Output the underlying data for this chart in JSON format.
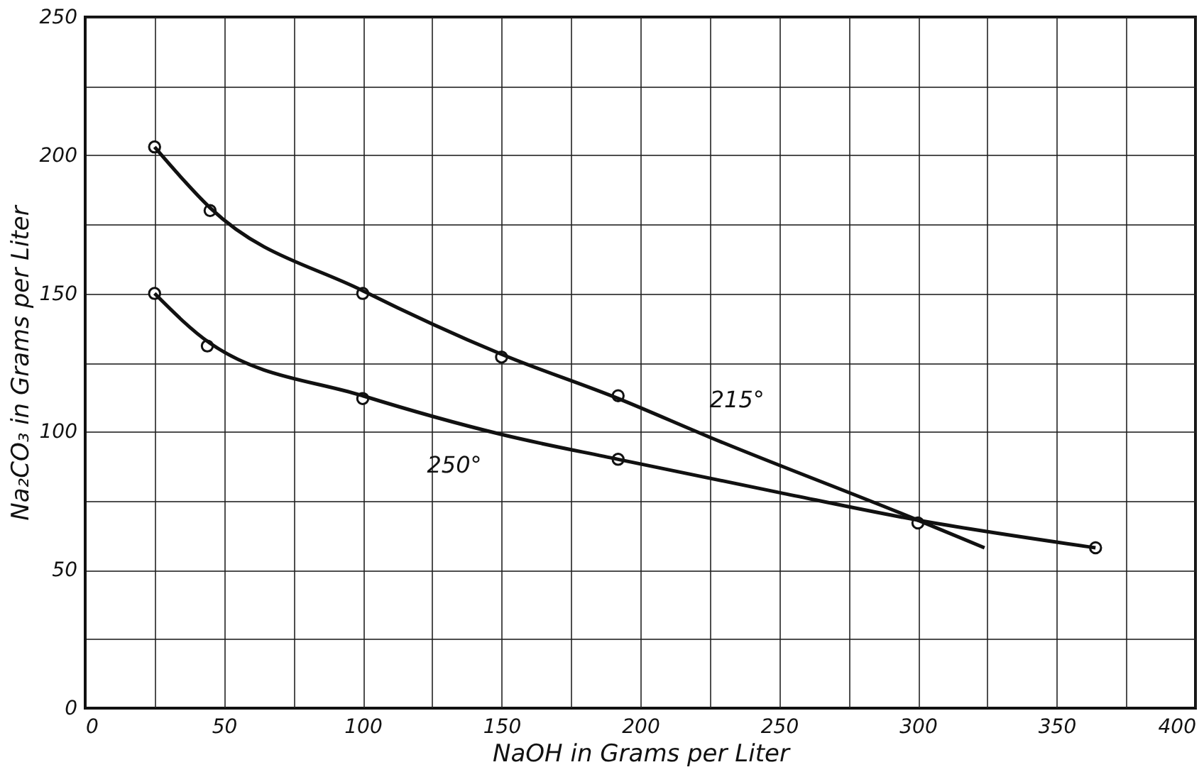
{
  "chart_data": {
    "type": "line",
    "xlabel": "NaOH in Grams per Liter",
    "ylabel": "Na₂CO₃ in Grams per Liter",
    "xlim": [
      0,
      400
    ],
    "ylim": [
      0,
      250
    ],
    "xticks": [
      0,
      {
        "value": 25,
        "label": null
      },
      50,
      {
        "value": 75,
        "label": null
      },
      100,
      {
        "value": 125,
        "label": null
      },
      150,
      {
        "value": 175,
        "label": null
      },
      200,
      {
        "value": 225,
        "label": null
      },
      250,
      {
        "value": 275,
        "label": null
      },
      300,
      {
        "value": 325,
        "label": null
      },
      350,
      {
        "value": 375,
        "label": null
      },
      400
    ],
    "yticks": [
      0,
      {
        "value": 25,
        "label": null
      },
      50,
      {
        "value": 75,
        "label": null
      },
      100,
      {
        "value": 125,
        "label": null
      },
      150,
      {
        "value": 175,
        "label": null
      },
      200,
      {
        "value": 225,
        "label": null
      },
      250
    ],
    "grid": true,
    "series": [
      {
        "name": "215°",
        "color": "#111111",
        "x": [
          25,
          45,
          100,
          150,
          192,
          225,
          300,
          324
        ],
        "values": [
          203,
          181,
          151,
          128,
          112,
          98,
          68,
          58
        ]
      },
      {
        "name": "250°",
        "color": "#111111",
        "x": [
          25,
          45,
          100,
          150,
          192,
          250,
          300,
          364
        ],
        "values": [
          150,
          132,
          113,
          99,
          90,
          78,
          68,
          58
        ]
      },
      {
        "type": "scatter",
        "color": "#111111",
        "marker": "circle",
        "x": [
          25,
          45,
          100,
          150,
          192
        ],
        "values": [
          203,
          180,
          150,
          127,
          113
        ]
      },
      {
        "type": "scatter",
        "color": "#111111",
        "marker": "circle",
        "x": [
          25,
          44,
          100,
          192,
          300,
          364
        ],
        "values": [
          150,
          131,
          112,
          90,
          67,
          58
        ]
      }
    ]
  }
}
